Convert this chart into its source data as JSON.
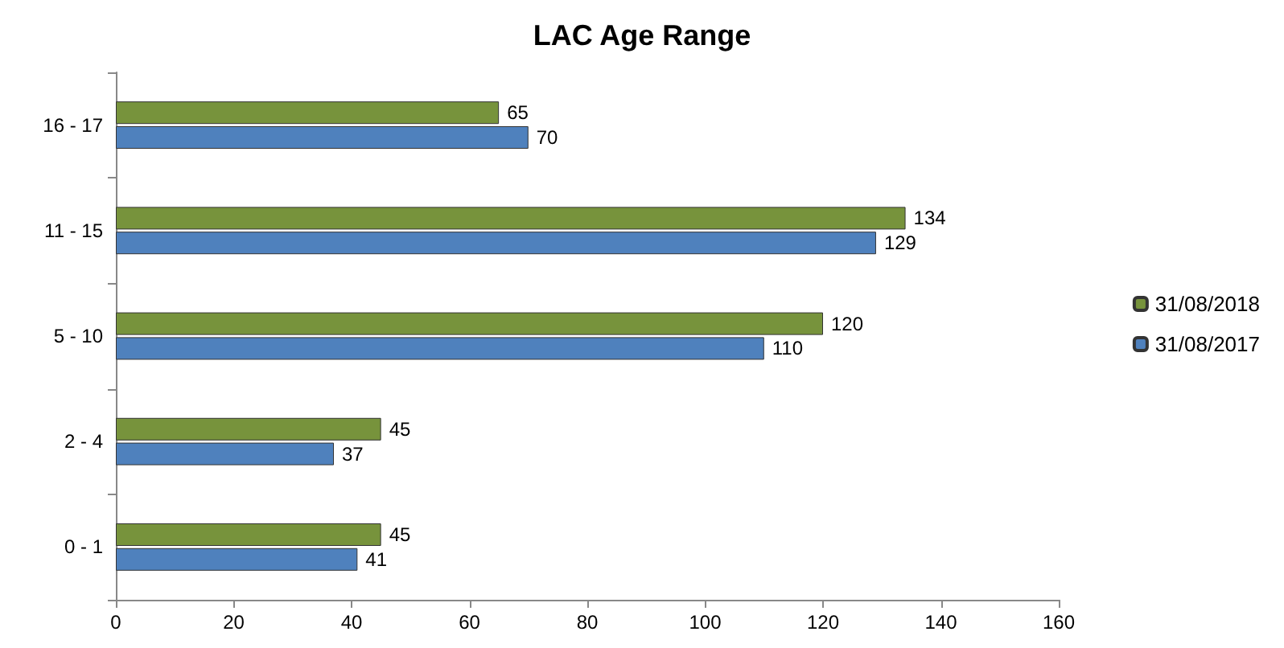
{
  "chart_data": {
    "type": "bar",
    "title": "LAC Age Range",
    "orientation": "horizontal",
    "categories": [
      "16 - 17",
      "11 - 15",
      "5 - 10",
      "2 - 4",
      "0 - 1"
    ],
    "series": [
      {
        "name": "31/08/2018",
        "color": "#77933c",
        "values": [
          65,
          134,
          120,
          45,
          45
        ]
      },
      {
        "name": "31/08/2017",
        "color": "#4f81bd",
        "values": [
          70,
          129,
          110,
          37,
          41
        ]
      }
    ],
    "xlim": [
      0,
      160
    ],
    "xticks": [
      0,
      20,
      40,
      60,
      80,
      100,
      120,
      140,
      160
    ],
    "data_labels": true,
    "legend": "right",
    "grid": false
  }
}
